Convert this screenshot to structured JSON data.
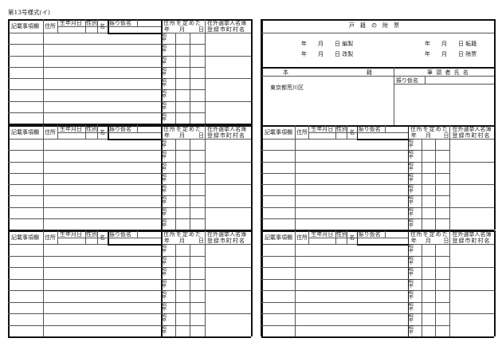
{
  "form_title": "第13号様式(イ)",
  "block_header": {
    "record": "記載事項欄",
    "address": "住所",
    "birthdate": "生年月日",
    "sex": "性別",
    "name": "名",
    "furigana": "振り仮名",
    "address_set_line1": "住所を定めた",
    "year": "年",
    "month": "月",
    "day": "日",
    "overseas_line1": "在外選挙人名簿",
    "overseas_line2": "登録市町村名"
  },
  "era_label": "昭平",
  "rows_per_block": 8,
  "cover": {
    "title": "戸　籍　の　附　票",
    "dates_left": [
      "年　　月　　日 編製",
      "年　　月　　日 改製"
    ],
    "dates_right": [
      "年　　月　　日 転籍",
      "年　　月　　日 除票"
    ],
    "honseki_label_left": "本",
    "honseki_label_right": "籍",
    "head_name_label": "筆 頭 者 氏 名",
    "head_furigana_label": "振り仮名",
    "honseki_value": "東京都荒川区"
  }
}
